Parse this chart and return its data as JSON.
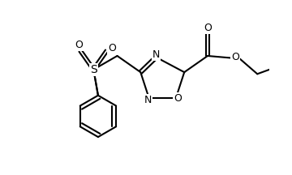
{
  "bg_color": "#ffffff",
  "line_color": "#000000",
  "line_width": 1.5,
  "font_size": 9,
  "fig_width": 3.6,
  "fig_height": 2.16,
  "dpi": 100,
  "xlim": [
    -0.5,
    4.0
  ],
  "ylim": [
    -1.8,
    1.4
  ]
}
